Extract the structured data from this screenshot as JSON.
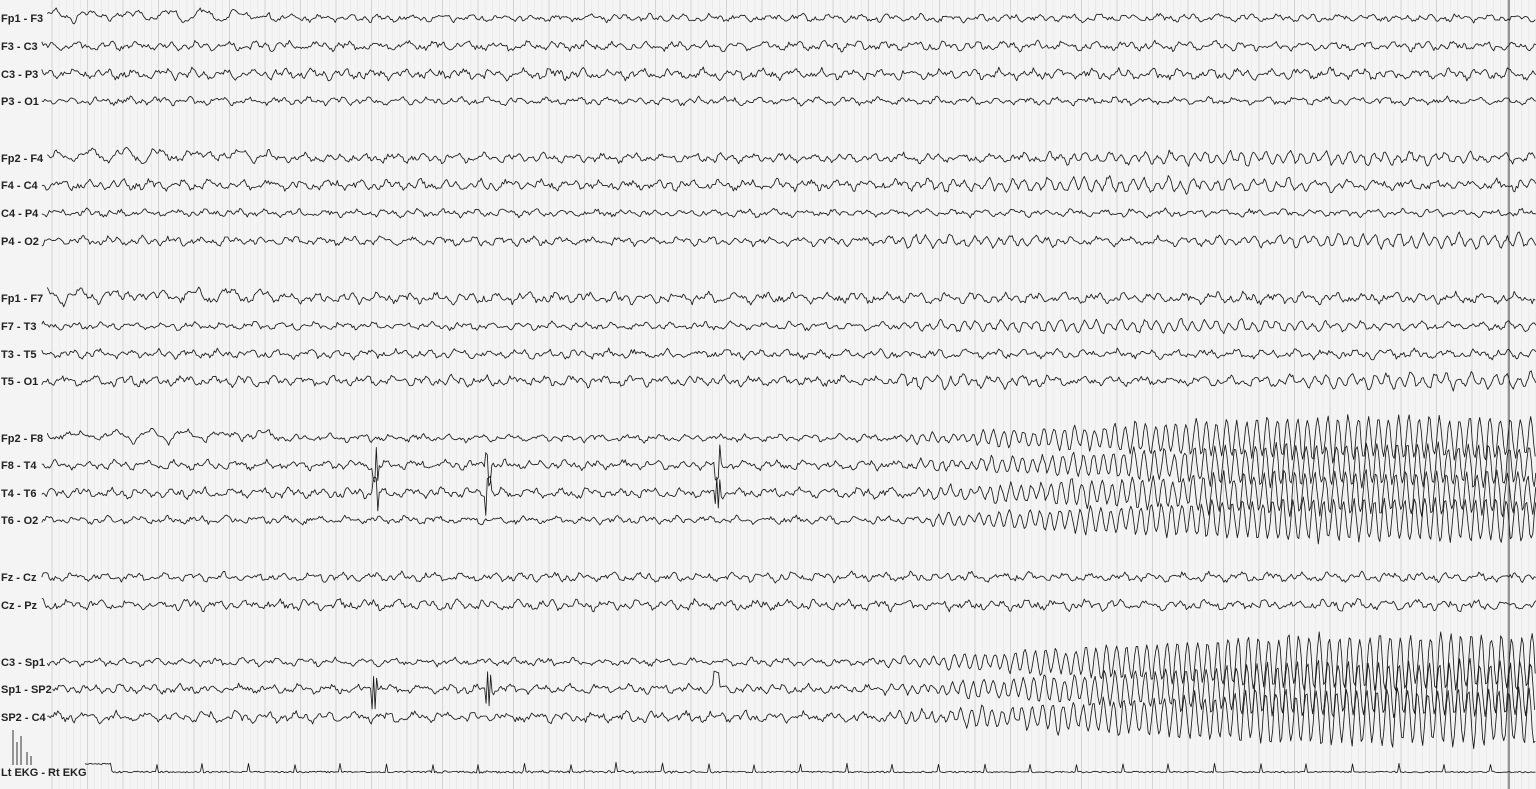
{
  "chart_data": {
    "type": "line",
    "title": "",
    "xlabel": "",
    "ylabel": "",
    "grid": true,
    "montage": [
      "Fp1 - F3",
      "F3 - C3",
      "C3 - P3",
      "P3 - O1",
      "Fp2 - F4",
      "F4 - C4",
      "C4 - P4",
      "P4 - O2",
      "Fp1 - F7",
      "F7 - T3",
      "T3 - T5",
      "T5 - O1",
      "Fp2 - F8",
      "F8 - T4",
      "T4 - T6",
      "T6 - O2",
      "Fz - Cz",
      "Cz - Pz",
      "C3 - Sp1",
      "Sp1 - SP2",
      "SP2 - C4",
      "Lt EKG - Rt EKG"
    ],
    "colors": {
      "background": "#f4f4f4",
      "grid": "#c9c9c9",
      "trace": "#1a1a1a",
      "label": "#222222"
    }
  }
}
